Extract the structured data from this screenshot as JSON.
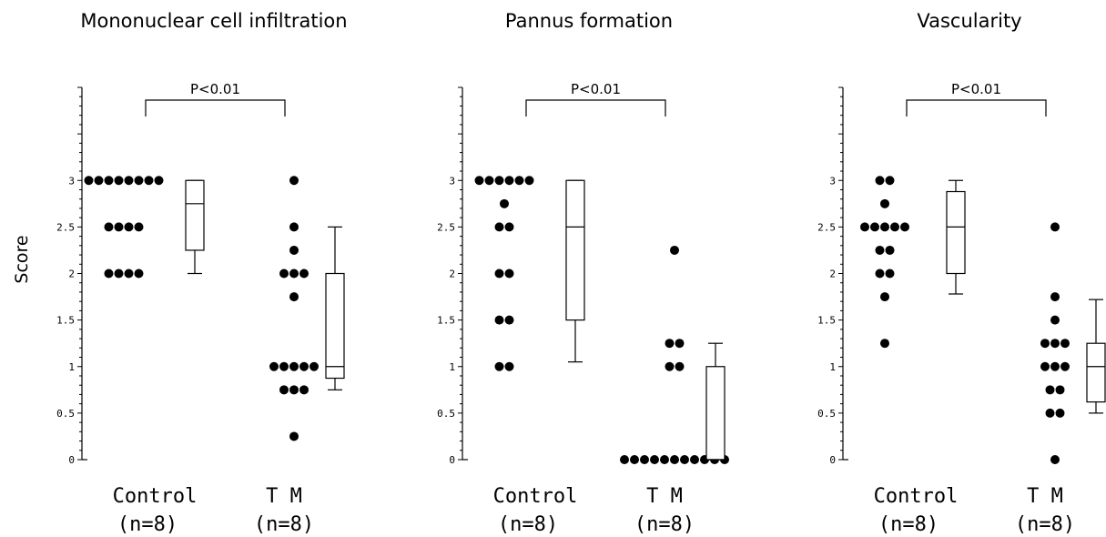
{
  "chart_data": {
    "ylabel": "Score",
    "significance": "P<0.01",
    "y_ticks": [
      "0",
      "0.5",
      "1",
      "1.5",
      "2",
      "2.5",
      "3"
    ],
    "ylim": [
      0,
      4
    ],
    "groups": [
      {
        "label": "Control",
        "n": "(n=8)"
      },
      {
        "label": "T M",
        "n": "(n=8)"
      }
    ],
    "panels": [
      {
        "type": "scatter",
        "title": "Mononuclear cell infiltration",
        "points": [
          [
            3,
            3,
            3,
            3,
            3,
            3,
            3,
            3,
            2.5,
            2.5,
            2.5,
            2.5,
            2,
            2,
            2,
            2
          ],
          [
            3,
            2.5,
            2.25,
            2,
            2,
            2,
            1.75,
            1,
            1,
            1,
            1,
            1,
            0.75,
            0.75,
            0.75,
            0.25
          ]
        ],
        "boxes": [
          {
            "min": 2,
            "q1": 2.25,
            "median": 2.75,
            "q3": 3,
            "max": 3
          },
          {
            "min": 0.75,
            "q1": 0.875,
            "median": 1,
            "q3": 2,
            "max": 2.5
          }
        ]
      },
      {
        "type": "scatter",
        "title": "Pannus formation",
        "points": [
          [
            3,
            3,
            3,
            3,
            3,
            3,
            2.75,
            2.5,
            2.5,
            2,
            2,
            1.5,
            1.5,
            1,
            1
          ],
          [
            2.25,
            1.25,
            1.25,
            1,
            1,
            0,
            0,
            0,
            0,
            0,
            0,
            0,
            0,
            0,
            0,
            0
          ]
        ],
        "boxes": [
          {
            "min": 1.05,
            "q1": 1.5,
            "median": 2.5,
            "q3": 3,
            "max": 3
          },
          {
            "min": 0,
            "q1": 0,
            "median": 0,
            "q3": 1,
            "max": 1.25
          }
        ]
      },
      {
        "type": "scatter",
        "title": "Vascularity",
        "points": [
          [
            3,
            3,
            2.75,
            2.5,
            2.5,
            2.5,
            2.5,
            2.5,
            2.25,
            2.25,
            2,
            2,
            1.75,
            1.25
          ],
          [
            2.5,
            1.75,
            1.5,
            1.25,
            1.25,
            1.25,
            1,
            1,
            1,
            0.75,
            0.75,
            0.5,
            0.5,
            0
          ]
        ],
        "boxes": [
          {
            "min": 1.78,
            "q1": 2,
            "median": 2.5,
            "q3": 2.88,
            "max": 3
          },
          {
            "min": 0.5,
            "q1": 0.62,
            "median": 1,
            "q3": 1.25,
            "max": 1.72
          }
        ]
      }
    ]
  }
}
